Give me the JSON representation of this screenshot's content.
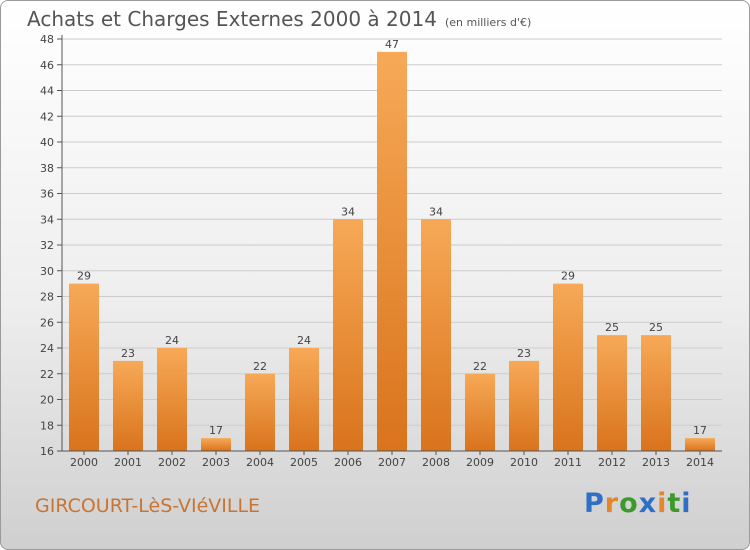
{
  "title": "Achats et Charges Externes 2000 à 2014",
  "subtitle": "(en milliers d'€)",
  "commune": "GIRCOURT-LèS-VIéVILLE",
  "logo": {
    "text": "Proxiti",
    "letter_colors": [
      "#2f6fc6",
      "#e6862a",
      "#3a9a2c",
      "#2f6fc6",
      "#e6862a",
      "#3a9a2c",
      "#2f6fc6"
    ]
  },
  "colors": {
    "bar": "#f2a04a",
    "axis": "#555555",
    "grid": "#cccccc",
    "text": "#444444",
    "brand": "#c87533"
  },
  "chart_data": {
    "type": "bar",
    "title": "Achats et Charges Externes 2000 à 2014",
    "subtitle": "(en milliers d'€)",
    "xlabel": "",
    "ylabel": "",
    "categories": [
      "2000",
      "2001",
      "2002",
      "2003",
      "2004",
      "2005",
      "2006",
      "2007",
      "2008",
      "2009",
      "2010",
      "2011",
      "2012",
      "2013",
      "2014"
    ],
    "values": [
      29,
      23,
      24,
      17,
      22,
      24,
      34,
      47,
      34,
      22,
      23,
      29,
      25,
      25,
      17
    ],
    "ylim": [
      16,
      48
    ],
    "yticks": [
      16,
      18,
      20,
      22,
      24,
      26,
      28,
      30,
      32,
      34,
      36,
      38,
      40,
      42,
      44,
      46,
      48
    ],
    "grid": true,
    "data_labels": true
  }
}
